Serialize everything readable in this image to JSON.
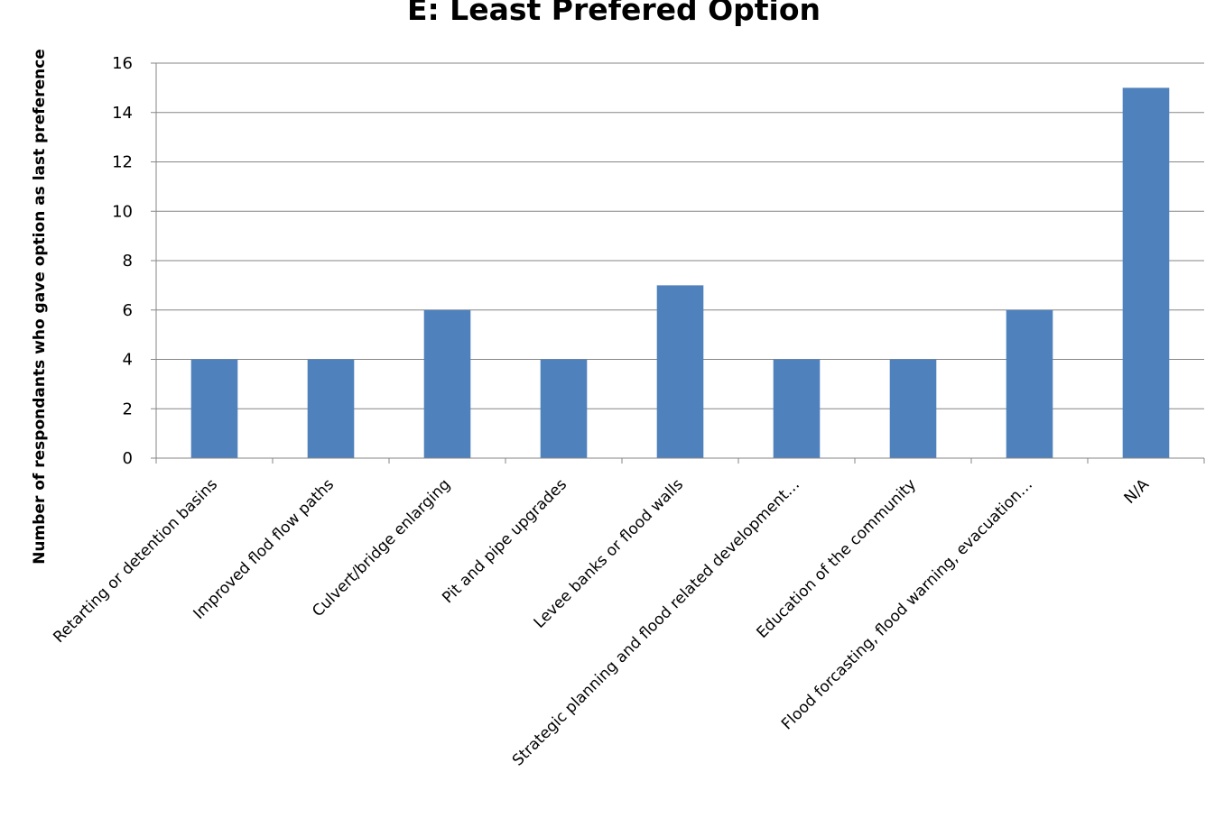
{
  "chart_data": {
    "type": "bar",
    "title": "E: Least Prefered Option",
    "xlabel": "",
    "ylabel": "Number of respondants who gave option as last preference",
    "categories": [
      "Retarting or detention basins",
      "Improved flod flow paths",
      "Culvert/bridge enlarging",
      "Pit and pipe upgrades",
      "Levee banks or flood walls",
      "Strategic planning and flood related development…",
      "Education of the community",
      "Flood forcasting, flood warning, evacuation…",
      "N/A"
    ],
    "values": [
      4,
      4,
      6,
      4,
      7,
      4,
      4,
      6,
      15
    ],
    "ylim": [
      0,
      16
    ],
    "yticks": [
      0,
      2,
      4,
      6,
      8,
      10,
      12,
      14,
      16
    ],
    "grid": true,
    "legend": "none",
    "bar_color": "#4F81BD"
  }
}
